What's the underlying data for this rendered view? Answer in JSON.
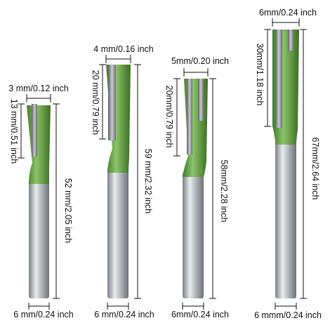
{
  "bits": [
    {
      "width": "3 mm/0.12 inch",
      "cut_length": "13 mm/0.51 inch",
      "total_length": "52 mm/2.05 inch",
      "shank": "6 mm/0.24 inch"
    },
    {
      "width": "4 mm/0.16 inch",
      "cut_length": "20 mm/0.79 inch",
      "total_length": "59 mm/2.32 inch",
      "shank": "6 mm/0.24 inch"
    },
    {
      "width": "5mm/0.20 inch",
      "cut_length": "20mm/0.79 inch",
      "total_length": "58mm/2.28 inch",
      "shank": "6mm/0.24 inch"
    },
    {
      "width": "6mm/0.24 inch",
      "cut_length": "30mm/1.18 inch",
      "total_length": "67mm/2.64 inch",
      "shank": "6 mmm/0.24 inch"
    }
  ]
}
